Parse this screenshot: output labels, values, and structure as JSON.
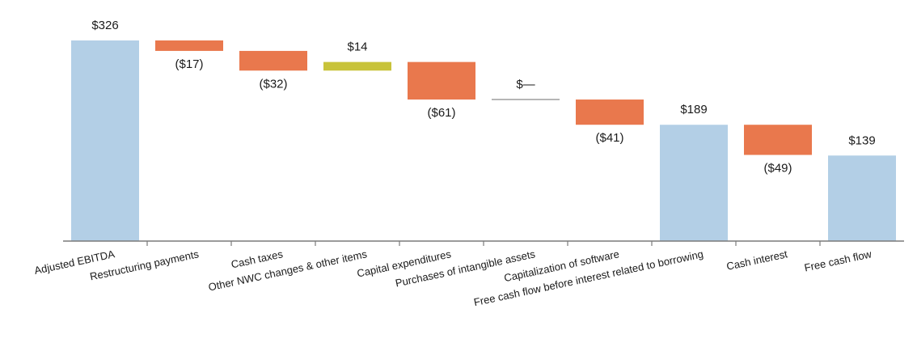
{
  "chart_data": {
    "type": "bar",
    "variant": "waterfall",
    "title": "",
    "xlabel": "",
    "ylabel": "",
    "ylim": [
      0,
      340
    ],
    "grid": false,
    "legend": "none",
    "categories": [
      "Adjusted EBITDA",
      "Restructuring payments",
      "Cash taxes",
      "Other NWC changes & other items",
      "Capital expenditures",
      "Purchases of intangible assets",
      "Capitalization of software",
      "Free cash flow before interest related to borrowing",
      "Cash interest",
      "Free cash flow"
    ],
    "values": [
      326,
      -17,
      -32,
      14,
      -61,
      0,
      -41,
      189,
      -49,
      139
    ],
    "bar_kinds": [
      "total",
      "decrease",
      "decrease",
      "increase",
      "decrease",
      "decrease",
      "decrease",
      "total",
      "decrease",
      "total"
    ],
    "data_labels": [
      "$326",
      "($17)",
      "($32)",
      "$14",
      "($61)",
      "$—",
      "($41)",
      "$189",
      "($49)",
      "$139"
    ],
    "colors": {
      "total": "#b3cfe6",
      "decrease": "#e9784d",
      "increase": "#c8c33a",
      "zero_line": "#6e6e6e",
      "axis": "#7a7a7a"
    }
  }
}
